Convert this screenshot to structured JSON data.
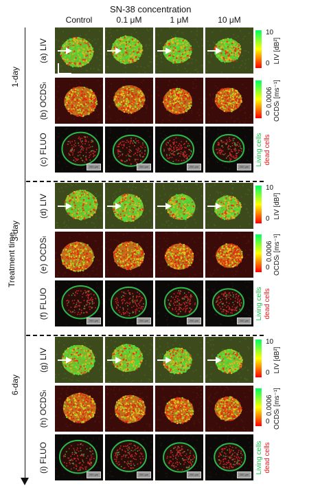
{
  "figure": {
    "column_group_title": "SN-38 concentration",
    "columns": [
      "Control",
      "0.1 μM",
      "1 μM",
      "10 μM"
    ],
    "axis_title": "Treatment time",
    "days": [
      "1-day",
      "3-day",
      "6-day"
    ],
    "row_labels": [
      "(a) LIV",
      "(b) OCDSₗ",
      "(c) FLUO",
      "(d) LIV",
      "(e) OCDSₗ",
      "(f) FLUO",
      "(g) LIV",
      "(h) OCDSₗ",
      "(i) FLUO"
    ],
    "liv_colorbar": {
      "max": "10",
      "min": "0",
      "unit": "LIV [dB²]"
    },
    "ocds_colorbar": {
      "max": "0.0006",
      "min": "0",
      "unit": "OCDSₗ [ms⁻¹]"
    },
    "fluo_legend": {
      "living": "Living cells",
      "dead": "dead cells"
    },
    "scale_bar_text": "200 μm"
  }
}
